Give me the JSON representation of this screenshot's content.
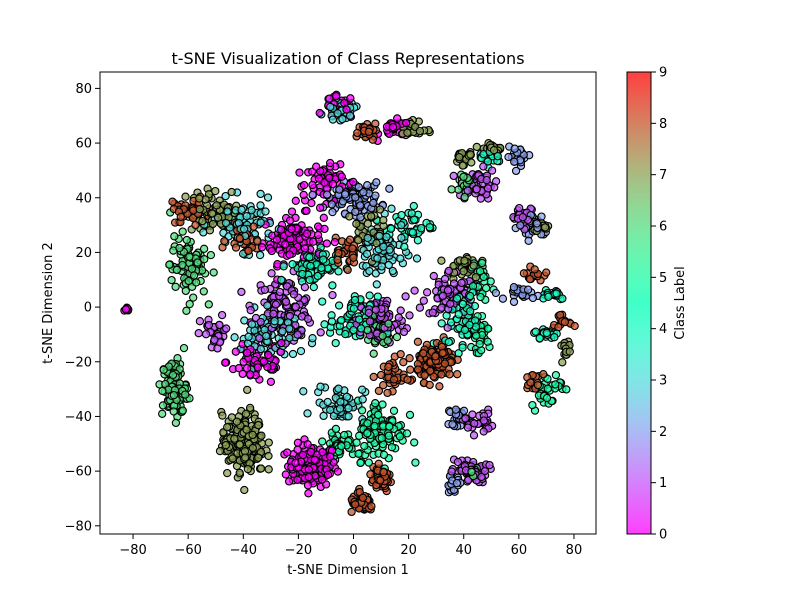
{
  "chart_data": {
    "type": "scatter",
    "title": "t-SNE Visualization of Class Representations",
    "xlabel": "t-SNE Dimension 1",
    "ylabel": "t-SNE Dimension 2",
    "xlim": [
      -92,
      88
    ],
    "ylim": [
      -83,
      86
    ],
    "xticks": [
      -80,
      -60,
      -40,
      -20,
      0,
      20,
      40,
      60,
      80
    ],
    "yticks": [
      -80,
      -60,
      -40,
      -20,
      0,
      20,
      40,
      60,
      80
    ],
    "grid": false,
    "colorbar": {
      "label": "Class Label",
      "range": [
        0,
        9
      ],
      "ticks": [
        0,
        1,
        2,
        3,
        4,
        5,
        6,
        7,
        8,
        9
      ],
      "colormap": "rainbow"
    },
    "point_style": {
      "edgecolor": "#000000",
      "alpha": 0.75
    },
    "clusters": [
      {
        "class": 0,
        "center": [
          -82,
          -1
        ],
        "spread": [
          1,
          1
        ],
        "n": 8
      },
      {
        "class": 0,
        "center": [
          -15,
          -58
        ],
        "spread": [
          8,
          7
        ],
        "n": 160
      },
      {
        "class": 0,
        "center": [
          -22,
          25
        ],
        "spread": [
          10,
          8
        ],
        "n": 110
      },
      {
        "class": 0,
        "center": [
          -10,
          45
        ],
        "spread": [
          10,
          6
        ],
        "n": 60
      },
      {
        "class": 0,
        "center": [
          -35,
          -20
        ],
        "spread": [
          10,
          8
        ],
        "n": 60
      },
      {
        "class": 0,
        "center": [
          -5,
          73
        ],
        "spread": [
          5,
          4
        ],
        "n": 30
      },
      {
        "class": 0,
        "center": [
          15,
          65
        ],
        "spread": [
          5,
          3
        ],
        "n": 25
      },
      {
        "class": 1,
        "center": [
          -25,
          0
        ],
        "spread": [
          10,
          10
        ],
        "n": 110
      },
      {
        "class": 1,
        "center": [
          10,
          -5
        ],
        "spread": [
          8,
          8
        ],
        "n": 80
      },
      {
        "class": 1,
        "center": [
          35,
          5
        ],
        "spread": [
          8,
          8
        ],
        "n": 70
      },
      {
        "class": 1,
        "center": [
          45,
          45
        ],
        "spread": [
          6,
          5
        ],
        "n": 50
      },
      {
        "class": 1,
        "center": [
          42,
          -60
        ],
        "spread": [
          6,
          4
        ],
        "n": 50
      },
      {
        "class": 1,
        "center": [
          45,
          -42
        ],
        "spread": [
          5,
          4
        ],
        "n": 30
      },
      {
        "class": 1,
        "center": [
          -50,
          -10
        ],
        "spread": [
          5,
          6
        ],
        "n": 30
      },
      {
        "class": 1,
        "center": [
          62,
          32
        ],
        "spread": [
          5,
          4
        ],
        "n": 30
      },
      {
        "class": 2,
        "center": [
          0,
          40
        ],
        "spread": [
          9,
          5
        ],
        "n": 90
      },
      {
        "class": 2,
        "center": [
          60,
          55
        ],
        "spread": [
          4,
          3
        ],
        "n": 25
      },
      {
        "class": 2,
        "center": [
          65,
          30
        ],
        "spread": [
          5,
          4
        ],
        "n": 35
      },
      {
        "class": 2,
        "center": [
          62,
          5
        ],
        "spread": [
          5,
          2
        ],
        "n": 25
      },
      {
        "class": 2,
        "center": [
          38,
          -40
        ],
        "spread": [
          3,
          3
        ],
        "n": 25
      },
      {
        "class": 2,
        "center": [
          36,
          -65
        ],
        "spread": [
          3,
          3
        ],
        "n": 15
      },
      {
        "class": 3,
        "center": [
          -30,
          -10
        ],
        "spread": [
          10,
          8
        ],
        "n": 90
      },
      {
        "class": 3,
        "center": [
          -40,
          30
        ],
        "spread": [
          10,
          8
        ],
        "n": 80
      },
      {
        "class": 3,
        "center": [
          10,
          20
        ],
        "spread": [
          8,
          10
        ],
        "n": 80
      },
      {
        "class": 3,
        "center": [
          -5,
          72
        ],
        "spread": [
          5,
          3
        ],
        "n": 30
      },
      {
        "class": 3,
        "center": [
          -5,
          -35
        ],
        "spread": [
          8,
          6
        ],
        "n": 50
      },
      {
        "class": 4,
        "center": [
          -15,
          15
        ],
        "spread": [
          8,
          6
        ],
        "n": 70
      },
      {
        "class": 4,
        "center": [
          0,
          -5
        ],
        "spread": [
          8,
          8
        ],
        "n": 70
      },
      {
        "class": 4,
        "center": [
          40,
          -5
        ],
        "spread": [
          6,
          10
        ],
        "n": 60
      },
      {
        "class": 4,
        "center": [
          20,
          30
        ],
        "spread": [
          8,
          6
        ],
        "n": 40
      },
      {
        "class": 4,
        "center": [
          50,
          55
        ],
        "spread": [
          4,
          3
        ],
        "n": 20
      },
      {
        "class": 4,
        "center": [
          72,
          5
        ],
        "spread": [
          5,
          2
        ],
        "n": 25
      },
      {
        "class": 4,
        "center": [
          70,
          -10
        ],
        "spread": [
          4,
          2
        ],
        "n": 20
      },
      {
        "class": 5,
        "center": [
          10,
          -45
        ],
        "spread": [
          8,
          10
        ],
        "n": 110
      },
      {
        "class": 5,
        "center": [
          -5,
          -50
        ],
        "spread": [
          5,
          4
        ],
        "n": 40
      },
      {
        "class": 5,
        "center": [
          45,
          -10
        ],
        "spread": [
          5,
          8
        ],
        "n": 35
      },
      {
        "class": 5,
        "center": [
          70,
          -30
        ],
        "spread": [
          5,
          6
        ],
        "n": 30
      },
      {
        "class": 5,
        "center": [
          45,
          10
        ],
        "spread": [
          5,
          6
        ],
        "n": 30
      },
      {
        "class": 6,
        "center": [
          -65,
          -30
        ],
        "spread": [
          4,
          10
        ],
        "n": 110
      },
      {
        "class": 6,
        "center": [
          -60,
          15
        ],
        "spread": [
          6,
          10
        ],
        "n": 90
      },
      {
        "class": 6,
        "center": [
          40,
          45
        ],
        "spread": [
          4,
          4
        ],
        "n": 25
      },
      {
        "class": 6,
        "center": [
          42,
          -60
        ],
        "spread": [
          4,
          3
        ],
        "n": 20
      },
      {
        "class": 6,
        "center": [
          10,
          -10
        ],
        "spread": [
          6,
          6
        ],
        "n": 30
      },
      {
        "class": 7,
        "center": [
          -40,
          -50
        ],
        "spread": [
          7,
          10
        ],
        "n": 190
      },
      {
        "class": 7,
        "center": [
          -50,
          35
        ],
        "spread": [
          10,
          7
        ],
        "n": 60
      },
      {
        "class": 7,
        "center": [
          5,
          30
        ],
        "spread": [
          5,
          8
        ],
        "n": 40
      },
      {
        "class": 7,
        "center": [
          40,
          15
        ],
        "spread": [
          5,
          4
        ],
        "n": 30
      },
      {
        "class": 7,
        "center": [
          40,
          55
        ],
        "spread": [
          3,
          3
        ],
        "n": 20
      },
      {
        "class": 7,
        "center": [
          50,
          58
        ],
        "spread": [
          4,
          2
        ],
        "n": 25
      },
      {
        "class": 7,
        "center": [
          22,
          65
        ],
        "spread": [
          4,
          3
        ],
        "n": 25
      },
      {
        "class": 7,
        "center": [
          77,
          -15
        ],
        "spread": [
          2,
          4
        ],
        "n": 15
      },
      {
        "class": 7,
        "center": [
          68,
          30
        ],
        "spread": [
          3,
          2
        ],
        "n": 12
      },
      {
        "class": 8,
        "center": [
          30,
          -20
        ],
        "spread": [
          6,
          6
        ],
        "n": 130
      },
      {
        "class": 8,
        "center": [
          3,
          -72
        ],
        "spread": [
          4,
          3
        ],
        "n": 50
      },
      {
        "class": 8,
        "center": [
          10,
          -63
        ],
        "spread": [
          4,
          4
        ],
        "n": 50
      },
      {
        "class": 8,
        "center": [
          -60,
          35
        ],
        "spread": [
          6,
          5
        ],
        "n": 40
      },
      {
        "class": 8,
        "center": [
          -40,
          25
        ],
        "spread": [
          5,
          5
        ],
        "n": 30
      },
      {
        "class": 8,
        "center": [
          5,
          65
        ],
        "spread": [
          5,
          3
        ],
        "n": 30
      },
      {
        "class": 8,
        "center": [
          65,
          12
        ],
        "spread": [
          3,
          2
        ],
        "n": 15
      },
      {
        "class": 8,
        "center": [
          75,
          -5
        ],
        "spread": [
          3,
          2
        ],
        "n": 15
      },
      {
        "class": 8,
        "center": [
          65,
          -28
        ],
        "spread": [
          3,
          3
        ],
        "n": 15
      },
      {
        "class": 8,
        "center": [
          15,
          -25
        ],
        "spread": [
          5,
          6
        ],
        "n": 40
      },
      {
        "class": 8,
        "center": [
          -2,
          20
        ],
        "spread": [
          5,
          5
        ],
        "n": 30
      }
    ]
  }
}
